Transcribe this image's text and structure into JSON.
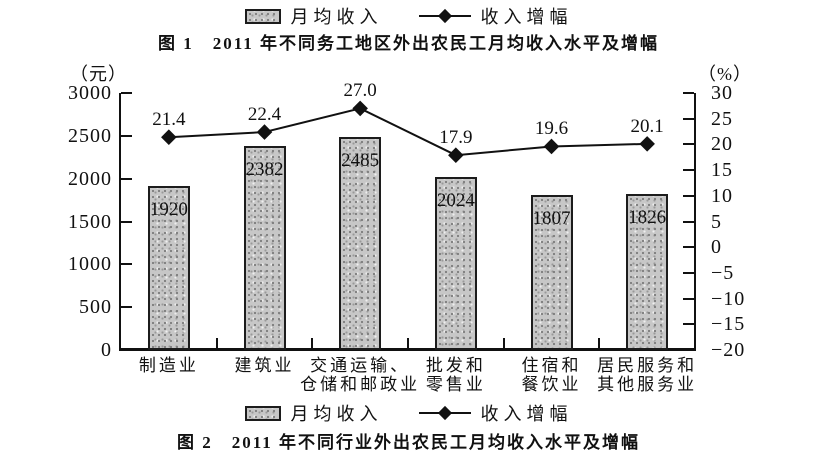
{
  "page": {
    "background": "#ffffff",
    "text_color": "#111111",
    "style": "black-and-white scanned statistical figure"
  },
  "legend": {
    "bar_label": "月均收入",
    "line_label": "收入增幅"
  },
  "figure1": {
    "caption": "图 1　2011 年不同务工地区外出农民工月均收入水平及增幅"
  },
  "figure2": {
    "caption": "图 2　2011 年不同行业外出农民工月均收入水平及增幅"
  },
  "chart_data": {
    "type": "bar",
    "subtype": "bar+line combo with dual y-axes",
    "title": "图 2　2011 年不同行业外出农民工月均收入水平及增幅",
    "grid": false,
    "legend_position": "centered above and below chart",
    "categories": [
      [
        "制造业"
      ],
      [
        "建筑业"
      ],
      [
        "交通运输、",
        "仓储和邮政业"
      ],
      [
        "批发和",
        "零售业"
      ],
      [
        "住宿和",
        "餐饮业"
      ],
      [
        "居民服务和",
        "其他服务业"
      ]
    ],
    "series": [
      {
        "name": "月均收入",
        "type": "bar",
        "axis": "left",
        "values": [
          1920,
          2382,
          2485,
          2024,
          1807,
          1826
        ],
        "labels": [
          "1920",
          "2382",
          "2485",
          "2024",
          "1807",
          "1826"
        ]
      },
      {
        "name": "收入增幅",
        "type": "line",
        "axis": "right",
        "marker": "diamond",
        "values": [
          21.4,
          22.4,
          27.0,
          17.9,
          19.6,
          20.1
        ],
        "labels": [
          "21.4",
          "22.4",
          "27.0",
          "17.9",
          "19.6",
          "20.1"
        ]
      }
    ],
    "left_axis": {
      "unit": "（元）",
      "min": 0,
      "max": 3000,
      "step": 500,
      "ticks": [
        {
          "value": 3000,
          "label": "3000"
        },
        {
          "value": 2500,
          "label": "2500"
        },
        {
          "value": 2000,
          "label": "2000"
        },
        {
          "value": 1500,
          "label": "1500"
        },
        {
          "value": 1000,
          "label": "1000"
        },
        {
          "value": 500,
          "label": "500"
        },
        {
          "value": 0,
          "label": "0"
        }
      ]
    },
    "right_axis": {
      "unit": "（%）",
      "min": -20,
      "max": 30,
      "step": 5,
      "ticks": [
        {
          "value": 30,
          "label": "30"
        },
        {
          "value": 25,
          "label": "25"
        },
        {
          "value": 20,
          "label": "20"
        },
        {
          "value": 15,
          "label": "15"
        },
        {
          "value": 10,
          "label": "10"
        },
        {
          "value": 5,
          "label": "5"
        },
        {
          "value": 0,
          "label": "0"
        },
        {
          "value": -5,
          "label": "−5"
        },
        {
          "value": -10,
          "label": "−10"
        },
        {
          "value": -15,
          "label": "−15"
        },
        {
          "value": -20,
          "label": "−20"
        }
      ]
    },
    "colors": {
      "bar_fill": "#c7c7c7",
      "bar_border": "#1c1c1c",
      "line": "#111111",
      "marker": "#111111",
      "text": "#111111",
      "background": "#ffffff"
    }
  }
}
